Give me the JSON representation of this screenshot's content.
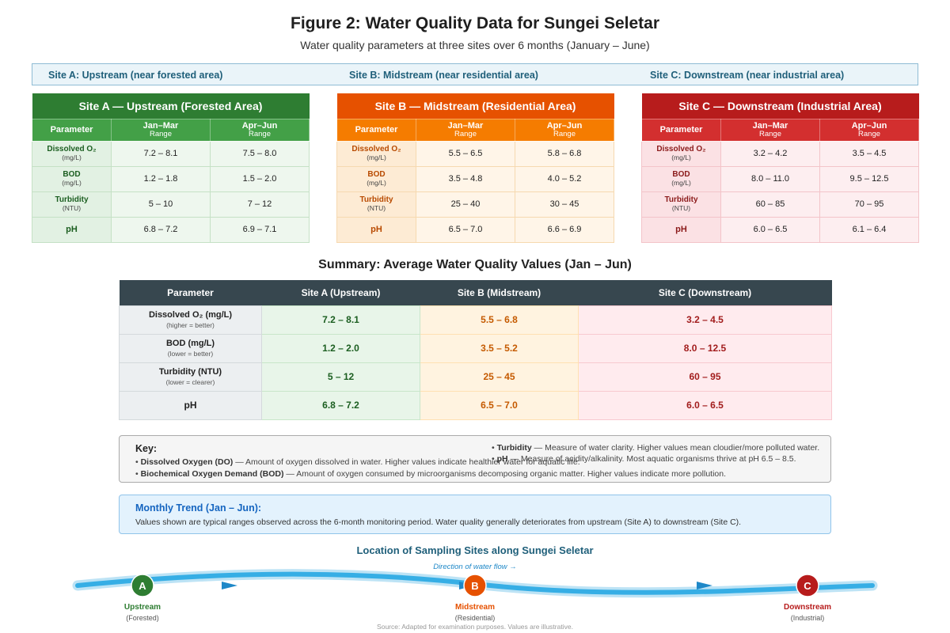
{
  "title": "Figure 2: Water Quality Data for Sungei Seletar",
  "subtitle": "Water quality parameters at three sites over 6 months (January – June)",
  "site_bar": {
    "a": "Site A: Upstream (near forested area)",
    "b": "Site B: Midstream (near residential area)",
    "c": "Site C: Downstream (near industrial area)"
  },
  "columns": {
    "parameter": "Parameter",
    "period1": "Jan–Mar",
    "period2": "Apr–Jun",
    "range": "Range"
  },
  "params": [
    {
      "name": "Dissolved O₂",
      "unit": "(mg/L)"
    },
    {
      "name": "BOD",
      "unit": "(mg/L)"
    },
    {
      "name": "Turbidity",
      "unit": "(NTU)"
    },
    {
      "name": "pH",
      "unit": ""
    }
  ],
  "sites": [
    {
      "title": "Site A — Upstream (Forested Area)",
      "rows": [
        [
          "7.2 – 8.1",
          "7.5 – 8.0"
        ],
        [
          "1.2 – 1.8",
          "1.5 – 2.0"
        ],
        [
          "5 – 10",
          "7 – 12"
        ],
        [
          "6.8 – 7.2",
          "6.9 – 7.1"
        ]
      ]
    },
    {
      "title": "Site B — Midstream (Residential Area)",
      "rows": [
        [
          "5.5 – 6.5",
          "5.8 – 6.8"
        ],
        [
          "3.5 – 4.8",
          "4.0 – 5.2"
        ],
        [
          "25 – 40",
          "30 – 45"
        ],
        [
          "6.5 – 7.0",
          "6.6 – 6.9"
        ]
      ]
    },
    {
      "title": "Site C — Downstream (Industrial Area)",
      "rows": [
        [
          "3.2 – 4.2",
          "3.5 – 4.5"
        ],
        [
          "8.0 – 11.0",
          "9.5 – 12.5"
        ],
        [
          "60 – 85",
          "70 – 95"
        ],
        [
          "6.0 – 6.5",
          "6.1 – 6.4"
        ]
      ]
    }
  ],
  "summary": {
    "title": "Summary: Average Water Quality Values (Jan – Jun)",
    "headers": [
      "Parameter",
      "Site A (Upstream)",
      "Site B (Midstream)",
      "Site C (Downstream)"
    ],
    "rows": [
      {
        "param": "Dissolved O₂ (mg/L)",
        "note": "(higher = better)",
        "a": "7.2 – 8.1",
        "b": "5.5 – 6.8",
        "c": "3.2 – 4.5"
      },
      {
        "param": "BOD (mg/L)",
        "note": "(lower = better)",
        "a": "1.2 – 2.0",
        "b": "3.5 – 5.2",
        "c": "8.0 – 12.5"
      },
      {
        "param": "Turbidity (NTU)",
        "note": "(lower = clearer)",
        "a": "5 – 12",
        "b": "25 – 45",
        "c": "60 – 95"
      },
      {
        "param": "pH",
        "note": "",
        "a": "6.8 – 7.2",
        "b": "6.5 – 7.0",
        "c": "6.0 – 6.5"
      }
    ]
  },
  "key": {
    "title": "Key:",
    "items": [
      {
        "term": "Dissolved Oxygen (DO)",
        "desc": " — Amount of oxygen dissolved in water. Higher values indicate healthier water for aquatic life."
      },
      {
        "term": "Biochemical Oxygen Demand (BOD)",
        "desc": " — Amount of oxygen consumed by microorganisms decomposing organic matter. Higher values indicate more pollution."
      },
      {
        "term": "Turbidity",
        "desc": " — Measure of water clarity. Higher values mean cloudier/more polluted water."
      },
      {
        "term": "pH",
        "desc": " — Measure of acidity/alkalinity. Most aquatic organisms thrive at pH 6.5 – 8.5."
      }
    ]
  },
  "trend": {
    "title": "Monthly Trend (Jan – Jun):",
    "text": "Values shown are typical ranges observed across the 6-month monitoring period. Water quality generally deteriorates from upstream (Site A) to downstream (Site C)."
  },
  "map": {
    "title": "Location of Sampling Sites along Sungei Seletar",
    "flow_label": "Direction of water flow →",
    "markers": [
      {
        "letter": "A",
        "label": "Upstream",
        "sub": "(Forested)",
        "color": "#2e7d32"
      },
      {
        "letter": "B",
        "label": "Midstream",
        "sub": "(Residential)",
        "color": "#e65100"
      },
      {
        "letter": "C",
        "label": "Downstream",
        "sub": "(Industrial)",
        "color": "#b71c1c"
      }
    ]
  },
  "source": "Source: Adapted for examination purposes. Values are illustrative."
}
